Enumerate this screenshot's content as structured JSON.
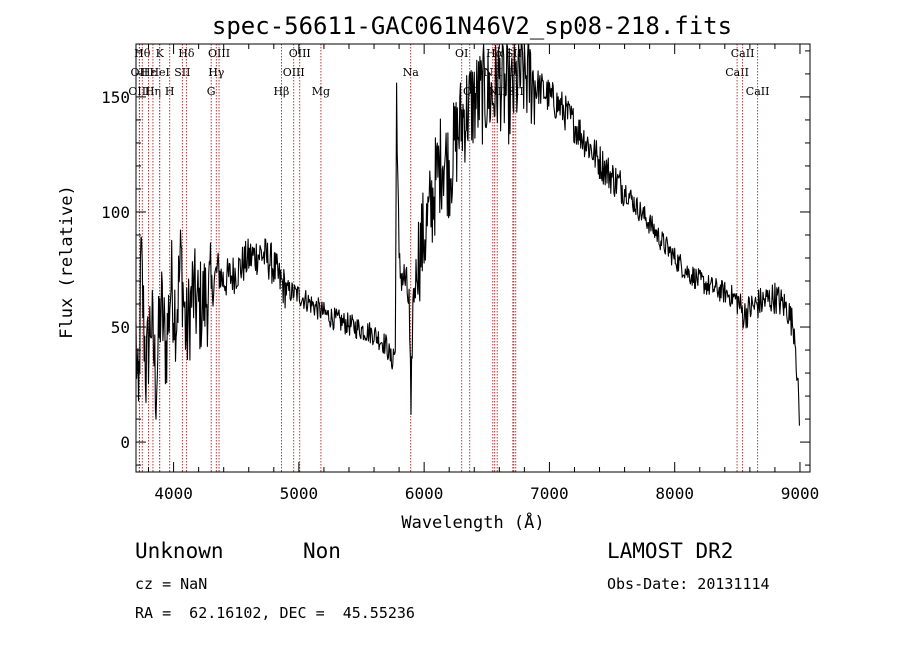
{
  "chart_data": {
    "type": "line",
    "title": "spec-56611-GAC061N46V2_sp08-218.fits",
    "xlabel": "Wavelength (Å)",
    "ylabel": "Flux (relative)",
    "xlim": [
      3700,
      9080
    ],
    "ylim": [
      -13,
      173
    ],
    "xticks": [
      4000,
      5000,
      6000,
      7000,
      8000,
      9000
    ],
    "yticks": [
      0,
      50,
      100,
      150
    ],
    "grid": false,
    "line_color": "#000000",
    "marker_color": "#b22222",
    "spectrum_anchors": [
      [
        3700,
        45
      ],
      [
        3720,
        10
      ],
      [
        3740,
        80
      ],
      [
        3780,
        30
      ],
      [
        3820,
        55
      ],
      [
        3860,
        25
      ],
      [
        3900,
        60
      ],
      [
        3940,
        40
      ],
      [
        3980,
        70
      ],
      [
        4020,
        55
      ],
      [
        4060,
        80
      ],
      [
        4100,
        45
      ],
      [
        4150,
        65
      ],
      [
        4200,
        58
      ],
      [
        4250,
        62
      ],
      [
        4300,
        65
      ],
      [
        4350,
        75
      ],
      [
        4400,
        70
      ],
      [
        4500,
        74
      ],
      [
        4600,
        80
      ],
      [
        4700,
        82
      ],
      [
        4780,
        78
      ],
      [
        4850,
        70
      ],
      [
        4900,
        66
      ],
      [
        5000,
        64
      ],
      [
        5100,
        60
      ],
      [
        5200,
        56
      ],
      [
        5300,
        53
      ],
      [
        5400,
        51
      ],
      [
        5500,
        49
      ],
      [
        5600,
        47
      ],
      [
        5700,
        42
      ],
      [
        5740,
        35
      ],
      [
        5770,
        40
      ],
      [
        5780,
        155
      ],
      [
        5800,
        75
      ],
      [
        5850,
        70
      ],
      [
        5880,
        60
      ],
      [
        5895,
        12
      ],
      [
        5910,
        60
      ],
      [
        5950,
        80
      ],
      [
        6000,
        90
      ],
      [
        6050,
        100
      ],
      [
        6100,
        115
      ],
      [
        6150,
        125
      ],
      [
        6200,
        118
      ],
      [
        6250,
        130
      ],
      [
        6300,
        140
      ],
      [
        6350,
        145
      ],
      [
        6400,
        148
      ],
      [
        6450,
        150
      ],
      [
        6500,
        152
      ],
      [
        6550,
        150
      ],
      [
        6600,
        158
      ],
      [
        6650,
        152
      ],
      [
        6700,
        150
      ],
      [
        6750,
        158
      ],
      [
        6800,
        160
      ],
      [
        6850,
        158
      ],
      [
        6900,
        155
      ],
      [
        7000,
        150
      ],
      [
        7100,
        145
      ],
      [
        7200,
        138
      ],
      [
        7300,
        130
      ],
      [
        7400,
        122
      ],
      [
        7500,
        115
      ],
      [
        7600,
        110
      ],
      [
        7700,
        102
      ],
      [
        7800,
        95
      ],
      [
        7900,
        87
      ],
      [
        8000,
        80
      ],
      [
        8100,
        74
      ],
      [
        8200,
        70
      ],
      [
        8300,
        67
      ],
      [
        8400,
        65
      ],
      [
        8500,
        62
      ],
      [
        8550,
        55
      ],
      [
        8600,
        58
      ],
      [
        8700,
        61
      ],
      [
        8800,
        63
      ],
      [
        8900,
        58
      ],
      [
        8960,
        48
      ],
      [
        9000,
        5
      ]
    ],
    "line_markers": [
      {
        "wave": 3750,
        "label": "Hθ",
        "row": 0
      },
      {
        "wave": 3727,
        "label": "OII",
        "row": 1
      },
      {
        "wave": 3727,
        "label": "OIII",
        "row": 2
      },
      {
        "wave": 3800,
        "label": "Hε",
        "row": 1
      },
      {
        "wave": 3835,
        "label": "Hη",
        "row": 2
      },
      {
        "wave": 3889,
        "label": "K",
        "row": 0
      },
      {
        "wave": 3889,
        "label": "HeI",
        "row": 1
      },
      {
        "wave": 3969,
        "label": "H",
        "row": 2
      },
      {
        "wave": 4070,
        "label": "SII",
        "row": 1
      },
      {
        "wave": 4102,
        "label": "Hδ",
        "row": 0
      },
      {
        "wave": 4300,
        "label": "G",
        "row": 2
      },
      {
        "wave": 4341,
        "label": "Hγ",
        "row": 1
      },
      {
        "wave": 4363,
        "label": "OIII",
        "row": 0
      },
      {
        "wave": 4861,
        "label": "Hβ",
        "row": 2
      },
      {
        "wave": 4959,
        "label": "OIII",
        "row": 1
      },
      {
        "wave": 5007,
        "label": "OIII",
        "row": 0
      },
      {
        "wave": 5176,
        "label": "Mg",
        "row": 2
      },
      {
        "wave": 5893,
        "label": "Na",
        "row": 1
      },
      {
        "wave": 6300,
        "label": "OI",
        "row": 0
      },
      {
        "wave": 6364,
        "label": "OI",
        "row": 2
      },
      {
        "wave": 6548,
        "label": "NII",
        "row": 1
      },
      {
        "wave": 6563,
        "label": "Hα",
        "row": 0
      },
      {
        "wave": 6583,
        "label": "NII",
        "row": 2
      },
      {
        "wave": 6708,
        "label": "Li",
        "row": 1
      },
      {
        "wave": 6716,
        "label": "SII",
        "row": 0
      },
      {
        "wave": 6731,
        "label": "SII",
        "row": 2
      },
      {
        "wave": 8498,
        "label": "CaII",
        "row": 1
      },
      {
        "wave": 8542,
        "label": "CaII",
        "row": 0
      },
      {
        "wave": 8662,
        "label": "CaII",
        "row": 2
      }
    ]
  },
  "info": {
    "classification": "Unknown",
    "subclass": "Non",
    "survey": "LAMOST DR2",
    "redshift": "cz = NaN",
    "obs_date": "Obs-Date: 20131114",
    "coords": "RA =  62.16102, DEC =  45.55236"
  }
}
